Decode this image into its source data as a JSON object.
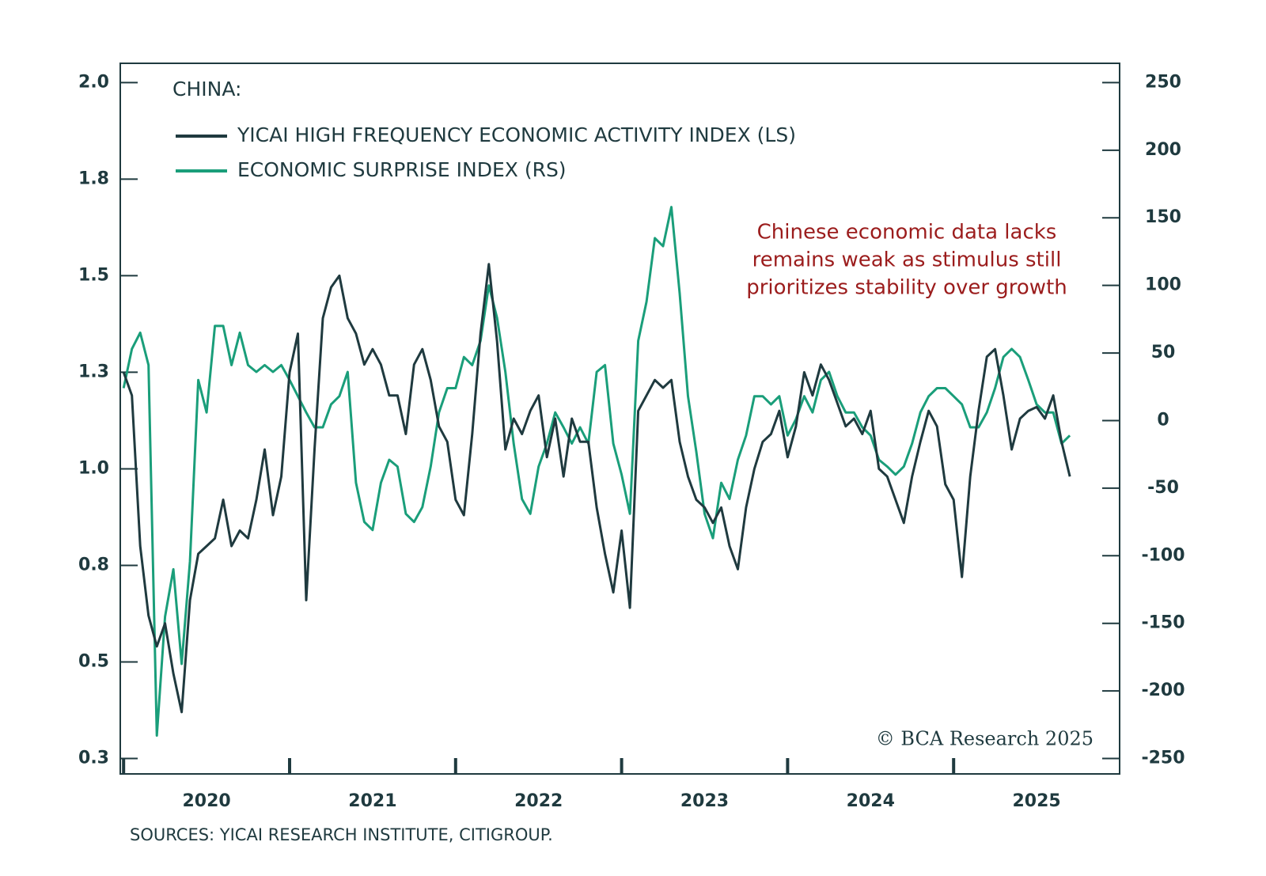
{
  "chart_data": {
    "type": "line",
    "title": "CHINA:",
    "annotation": [
      "Chinese economic data lacks",
      "remains weak as stimulus still",
      "prioritizes stability over growth"
    ],
    "copyright": "© BCA Research 2025",
    "source": "SOURCES: YICAI RESEARCH INSTITUTE, CITIGROUP.",
    "x": [
      2020.0,
      2020.05,
      2020.1,
      2020.15,
      2020.2,
      2020.25,
      2020.3,
      2020.35,
      2020.4,
      2020.45,
      2020.5,
      2020.55,
      2020.6,
      2020.65,
      2020.7,
      2020.75,
      2020.8,
      2020.85,
      2020.9,
      2020.95,
      2021.0,
      2021.05,
      2021.1,
      2021.15,
      2021.2,
      2021.25,
      2021.3,
      2021.35,
      2021.4,
      2021.45,
      2021.5,
      2021.55,
      2021.6,
      2021.65,
      2021.7,
      2021.75,
      2021.8,
      2021.85,
      2021.9,
      2021.95,
      2022.0,
      2022.05,
      2022.1,
      2022.15,
      2022.2,
      2022.25,
      2022.3,
      2022.35,
      2022.4,
      2022.45,
      2022.5,
      2022.55,
      2022.6,
      2022.65,
      2022.7,
      2022.75,
      2022.8,
      2022.85,
      2022.9,
      2022.95,
      2023.0,
      2023.05,
      2023.1,
      2023.15,
      2023.2,
      2023.25,
      2023.3,
      2023.35,
      2023.4,
      2023.45,
      2023.5,
      2023.55,
      2023.6,
      2023.65,
      2023.7,
      2023.75,
      2023.8,
      2023.85,
      2023.9,
      2023.95,
      2024.0,
      2024.05,
      2024.1,
      2024.15,
      2024.2,
      2024.25,
      2024.3,
      2024.35,
      2024.4,
      2024.45,
      2024.5,
      2024.55,
      2024.6,
      2024.65,
      2024.7,
      2024.75,
      2024.8,
      2024.85,
      2024.9,
      2024.95,
      2025.0,
      2025.05,
      2025.1,
      2025.15,
      2025.2,
      2025.25,
      2025.3,
      2025.35,
      2025.4,
      2025.45,
      2025.5,
      2025.55,
      2025.6,
      2025.65,
      2025.7
    ],
    "series": [
      {
        "name": "YICAI HIGH FREQUENCY ECONOMIC ACTIVITY INDEX (LS)",
        "color": "#1f3a3f",
        "axis": "y",
        "values": [
          1.25,
          1.19,
          0.8,
          0.62,
          0.54,
          0.6,
          0.47,
          0.37,
          0.66,
          0.78,
          0.8,
          0.82,
          0.92,
          0.8,
          0.84,
          0.82,
          0.92,
          1.05,
          0.88,
          0.98,
          1.25,
          1.35,
          0.66,
          1.05,
          1.39,
          1.47,
          1.5,
          1.39,
          1.35,
          1.27,
          1.31,
          1.27,
          1.19,
          1.19,
          1.09,
          1.27,
          1.31,
          1.23,
          1.11,
          1.07,
          0.92,
          0.88,
          1.09,
          1.35,
          1.53,
          1.33,
          1.05,
          1.13,
          1.09,
          1.15,
          1.19,
          1.03,
          1.13,
          0.98,
          1.13,
          1.07,
          1.07,
          0.9,
          0.78,
          0.68,
          0.84,
          0.64,
          1.15,
          1.19,
          1.23,
          1.21,
          1.23,
          1.07,
          0.98,
          0.92,
          0.9,
          0.86,
          0.9,
          0.8,
          0.74,
          0.9,
          1.0,
          1.07,
          1.09,
          1.15,
          1.03,
          1.11,
          1.25,
          1.19,
          1.27,
          1.23,
          1.17,
          1.11,
          1.13,
          1.09,
          1.15,
          1.0,
          0.98,
          0.92,
          0.86,
          0.98,
          1.07,
          1.15,
          1.11,
          0.96,
          0.92,
          0.72,
          0.98,
          1.15,
          1.29,
          1.31,
          1.19,
          1.05,
          1.13,
          1.15,
          1.16,
          1.13,
          1.19,
          1.07,
          0.98
        ]
      },
      {
        "name": "ECONOMIC SURPRISE INDEX (RS)",
        "color": "#1a9e7a",
        "axis": "y2",
        "values": [
          24,
          53,
          65,
          41,
          -233,
          -145,
          -110,
          -180,
          -104,
          30,
          6,
          70,
          70,
          41,
          65,
          41,
          36,
          41,
          36,
          41,
          30,
          18,
          6,
          -5,
          -5,
          12,
          18,
          36,
          -46,
          -75,
          -81,
          -46,
          -29,
          -34,
          -69,
          -75,
          -64,
          -34,
          6,
          24,
          24,
          47,
          41,
          59,
          100,
          76,
          36,
          -17,
          -58,
          -69,
          -34,
          -17,
          6,
          -5,
          -17,
          -5,
          -17,
          36,
          41,
          -17,
          -40,
          -69,
          59,
          88,
          135,
          129,
          158,
          94,
          18,
          -23,
          -69,
          -87,
          -46,
          -58,
          -29,
          -11,
          18,
          18,
          12,
          18,
          -11,
          1,
          18,
          6,
          30,
          36,
          18,
          6,
          6,
          -5,
          -11,
          -29,
          -34,
          -40,
          -34,
          -17,
          6,
          18,
          24,
          24,
          18,
          12,
          -5,
          -5,
          6,
          24,
          47,
          53,
          47,
          30,
          12,
          6,
          6,
          -17,
          -11
        ]
      }
    ],
    "xlim": [
      2019.98,
      2026.0
    ],
    "xticks": [
      2020,
      2021,
      2022,
      2023,
      2024,
      2025
    ],
    "ylim": [
      0.21,
      2.05
    ],
    "yticks": [
      {
        "value": 0.25,
        "label": "0.3"
      },
      {
        "value": 0.5,
        "label": "0.5"
      },
      {
        "value": 0.75,
        "label": "0.8"
      },
      {
        "value": 1.0,
        "label": "1.0"
      },
      {
        "value": 1.25,
        "label": "1.3"
      },
      {
        "value": 1.5,
        "label": "1.5"
      },
      {
        "value": 1.75,
        "label": "1.8"
      },
      {
        "value": 2.0,
        "label": "2.0"
      }
    ],
    "y2lim": [
      -261.4,
      264.3
    ],
    "y2ticks": [
      -250,
      -200,
      -150,
      -100,
      -50,
      0,
      50,
      100,
      150,
      200,
      250
    ]
  }
}
